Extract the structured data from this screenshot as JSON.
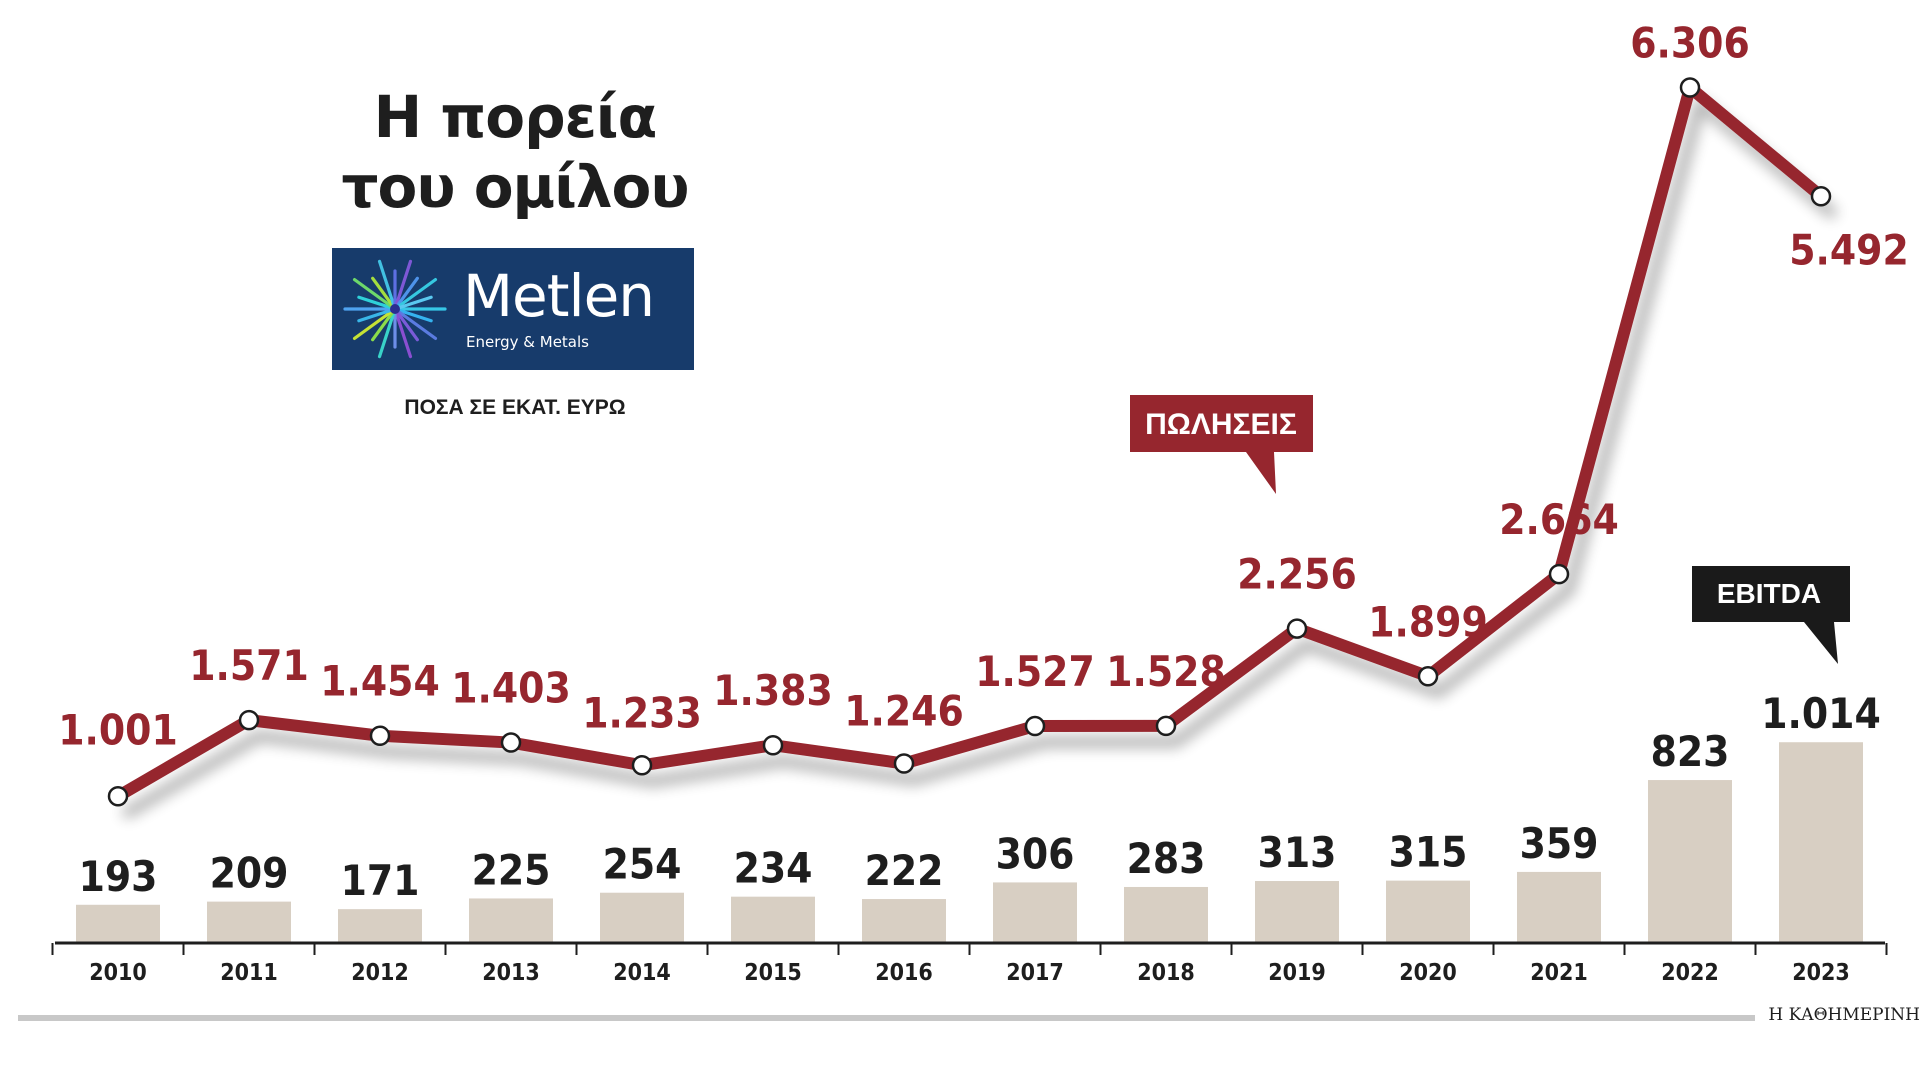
{
  "title_line1": "Η πορεία",
  "title_line2": "του ομίλου",
  "logo": {
    "name": "Metlen",
    "tagline": "Energy & Metals"
  },
  "units_note": "ΠΟΣΑ ΣΕ ΕΚΑΤ. ΕΥΡΩ",
  "credit": "Η ΚΑΘΗΜΕΡΙΝΗ",
  "colors": {
    "sales_line": "#96262e",
    "sales_text": "#96262e",
    "ebitda_bar": "#d8cfc3",
    "ebitda_text": "#1e1e1e",
    "ebitda_callout": "#1a1a1a",
    "logo_bg": "#173b6b"
  },
  "chart_data": {
    "type": "bar+line",
    "categories": [
      "2010",
      "2011",
      "2012",
      "2013",
      "2014",
      "2015",
      "2016",
      "2017",
      "2018",
      "2019",
      "2020",
      "2021",
      "2022",
      "2023"
    ],
    "series": [
      {
        "name": "ΠΩΛΗΣΕΙΣ",
        "type": "line",
        "values": [
          1001,
          1571,
          1454,
          1403,
          1233,
          1383,
          1246,
          1527,
          1528,
          2256,
          1899,
          2664,
          6306,
          5492
        ],
        "labels": [
          "1.001",
          "1.571",
          "1.454",
          "1.403",
          "1.233",
          "1.383",
          "1.246",
          "1.527",
          "1.528",
          "2.256",
          "1.899",
          "2.664",
          "6.306",
          "5.492"
        ]
      },
      {
        "name": "EBITDA",
        "type": "bar",
        "values": [
          193,
          209,
          171,
          225,
          254,
          234,
          222,
          306,
          283,
          313,
          315,
          359,
          823,
          1014
        ],
        "labels": [
          "193",
          "209",
          "171",
          "225",
          "254",
          "234",
          "222",
          "306",
          "283",
          "313",
          "315",
          "359",
          "823",
          "1.014"
        ]
      }
    ]
  }
}
